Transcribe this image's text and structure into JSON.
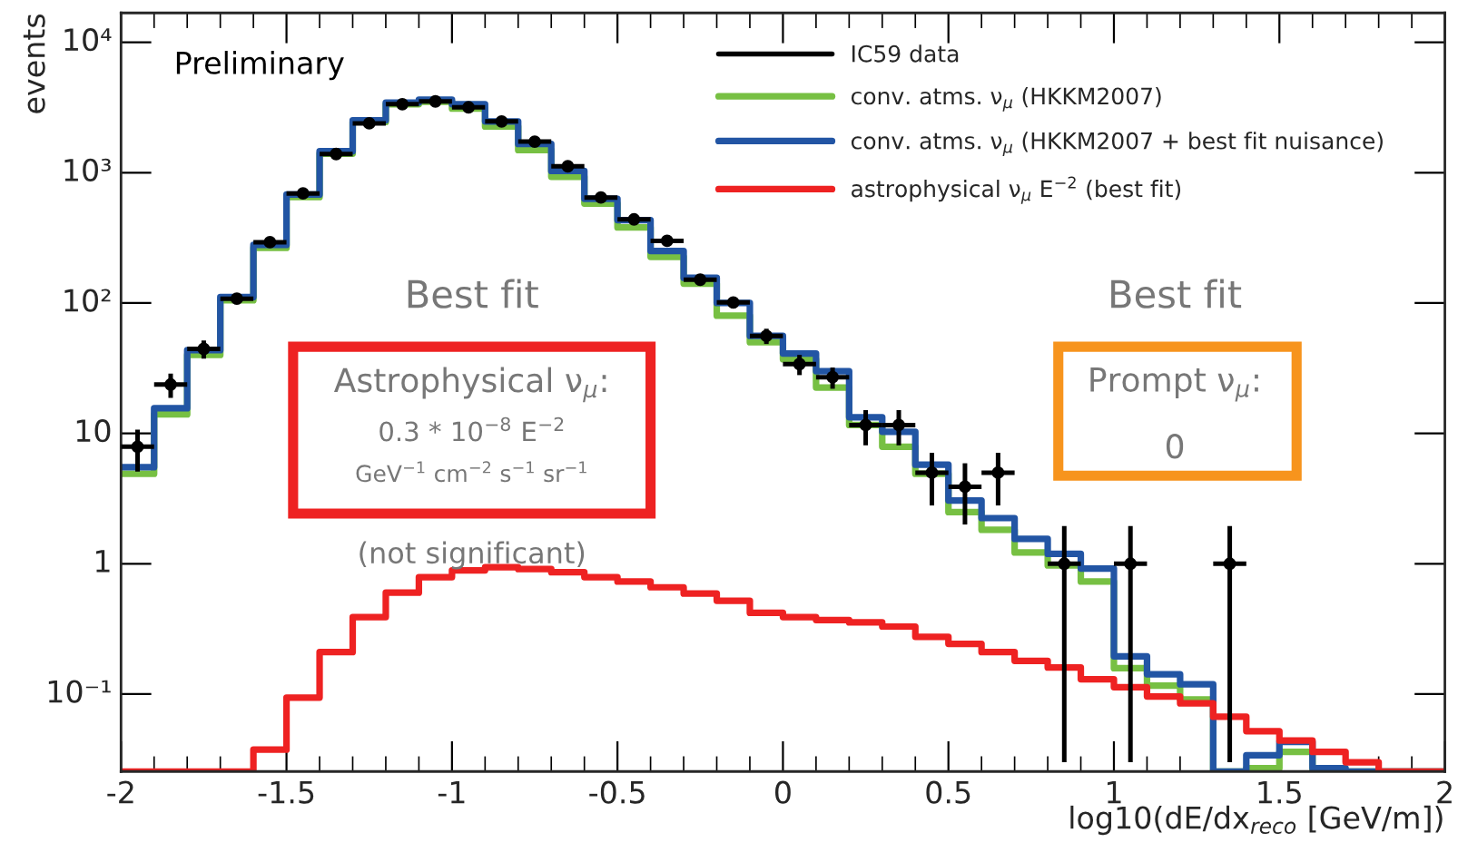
{
  "chart_data": {
    "type": "histogram",
    "bins": [
      -2,
      -1.9,
      -1.8,
      -1.7,
      -1.6,
      -1.5,
      -1.4,
      -1.3,
      -1.2,
      -1.1,
      -1,
      -0.9,
      -0.8,
      -0.7,
      -0.6,
      -0.5,
      -0.4,
      -0.3,
      -0.2,
      -0.1,
      0,
      0.1,
      0.2,
      0.3,
      0.4,
      0.5,
      0.6,
      0.7,
      0.8,
      0.9,
      1,
      1.1,
      1.2,
      1.3,
      1.4,
      1.5,
      1.6,
      1.7,
      1.8,
      1.9,
      2
    ],
    "xlabel": "log10(dE/dx$_{reco}$ [GeV/m])",
    "ylabel": "events",
    "log": "y",
    "xlim": [
      -2,
      2
    ],
    "ylim": [
      0.0255,
      16800
    ],
    "xticks": [
      -2,
      {
        "value": -1.9,
        "label": null
      },
      {
        "value": -1.8,
        "label": null
      },
      {
        "value": -1.7,
        "label": null
      },
      {
        "value": -1.6,
        "label": null
      },
      -1.5,
      {
        "value": -1.4,
        "label": null
      },
      {
        "value": -1.3,
        "label": null
      },
      {
        "value": -1.2,
        "label": null
      },
      {
        "value": -1.1,
        "label": null
      },
      -1,
      {
        "value": -0.9,
        "label": null
      },
      {
        "value": -0.8,
        "label": null
      },
      {
        "value": -0.7,
        "label": null
      },
      {
        "value": -0.6,
        "label": null
      },
      -0.5,
      {
        "value": -0.4,
        "label": null
      },
      {
        "value": -0.3,
        "label": null
      },
      {
        "value": -0.2,
        "label": null
      },
      {
        "value": -0.1,
        "label": null
      },
      0,
      {
        "value": 0.1,
        "label": null
      },
      {
        "value": 0.2,
        "label": null
      },
      {
        "value": 0.3,
        "label": null
      },
      {
        "value": 0.4,
        "label": null
      },
      0.5,
      {
        "value": 0.6,
        "label": null
      },
      {
        "value": 0.7,
        "label": null
      },
      {
        "value": 0.8,
        "label": null
      },
      {
        "value": 0.9,
        "label": null
      },
      1,
      {
        "value": 1.1,
        "label": null
      },
      {
        "value": 1.2,
        "label": null
      },
      {
        "value": 1.3,
        "label": null
      },
      {
        "value": 1.4,
        "label": null
      },
      1.5,
      {
        "value": 1.6,
        "label": null
      },
      {
        "value": 1.7,
        "label": null
      },
      {
        "value": 1.8,
        "label": null
      },
      {
        "value": 1.9,
        "label": null
      },
      2
    ],
    "yticks": [
      {
        "value": 0.1,
        "label": "10⁻¹"
      },
      1,
      10,
      {
        "value": 100,
        "label": "10²"
      },
      {
        "value": 1000,
        "label": "10³"
      },
      {
        "value": 10000,
        "label": "10⁴"
      }
    ],
    "grid": false,
    "legend": "top right",
    "series": [
      {
        "name": "IC59 data",
        "type": "scatter",
        "color": "#000000",
        "marker": "circle",
        "x": [
          -1.95,
          -1.85,
          -1.75,
          -1.65,
          -1.55,
          -1.45,
          -1.35,
          -1.25,
          -1.15,
          -1.05,
          -0.95,
          -0.85,
          -0.75,
          -0.65,
          -0.55,
          -0.45,
          -0.35,
          -0.25,
          -0.15,
          -0.05,
          0.05,
          0.15,
          0.25,
          0.35,
          0.45,
          0.55,
          0.65,
          0.85,
          1.05,
          1.35
        ],
        "values": [
          7.9,
          23.7,
          44.5,
          108,
          293,
          693,
          1390,
          2390,
          3350,
          3520,
          3170,
          2470,
          1730,
          1120,
          645,
          438,
          300,
          151,
          101,
          56,
          34,
          27,
          11.6,
          11.6,
          5.0,
          3.9,
          5.0,
          1.0,
          1.0,
          1.0
        ],
        "errors": [
          2.8,
          5,
          7,
          10,
          17,
          26,
          37,
          49,
          58,
          59,
          56,
          50,
          42,
          33,
          25,
          21,
          17,
          12,
          10,
          7.5,
          6,
          5,
          3.5,
          3.5,
          [
            2.8,
            7.1
          ],
          [
            2.0,
            5.9
          ],
          [
            2.8,
            7.1
          ],
          [
            0.03,
            1.95
          ],
          [
            0.03,
            1.95
          ],
          [
            0.03,
            1.95
          ]
        ],
        "xerrors": [
          0.05,
          0.05,
          0.05,
          0.05,
          0.05,
          0.05,
          0.05,
          0.05,
          0.05,
          0.05,
          0.05,
          0.05,
          0.05,
          0.05,
          0.05,
          0.05,
          0.05,
          0.05,
          0.05,
          0.05,
          0.05,
          0.05,
          0.05,
          0.05,
          0.05,
          0.05,
          0.05,
          0.05,
          0.05,
          0.05
        ]
      },
      {
        "name": "conv. atms. ν$_{μ}$ (HKKM2007)",
        "color": "#77c043",
        "values": [
          4.9,
          14,
          40,
          105,
          265,
          650,
          1400,
          2450,
          3350,
          3500,
          3100,
          2260,
          1490,
          930,
          580,
          380,
          226,
          141,
          80,
          50,
          37,
          22.5,
          11.6,
          7.9,
          4.9,
          2.49,
          1.82,
          1.22,
          0.97,
          0.73,
          0.158,
          0.116,
          0.091,
          null,
          0.027,
          0.036,
          null,
          null,
          null,
          null
        ]
      },
      {
        "name": "conv. atms. ν$_{μ}$ (HKKM2007 + best fit nuisance)",
        "color": "#2255a4",
        "values": [
          5.5,
          15.6,
          43.5,
          111,
          279,
          679,
          1460,
          2520,
          3450,
          3630,
          3350,
          2470,
          1660,
          1030,
          630,
          433,
          251,
          156,
          100,
          56,
          41,
          30,
          13.3,
          10.3,
          5.75,
          3.06,
          2.24,
          1.55,
          1.19,
          0.92,
          0.195,
          0.142,
          0.119,
          null,
          0.034,
          0.043,
          0.027,
          null,
          null,
          null
        ]
      },
      {
        "name": "astrophysical ν$_{μ}$ E$^{−2}$ (best fit)",
        "color": "#ee2222",
        "values": [
          null,
          null,
          null,
          null,
          0.0375,
          0.094,
          0.21,
          0.39,
          0.6,
          0.79,
          0.89,
          0.94,
          0.91,
          0.86,
          0.79,
          0.73,
          0.66,
          0.59,
          0.52,
          0.42,
          0.39,
          0.37,
          0.355,
          0.33,
          0.275,
          0.243,
          0.21,
          0.18,
          0.16,
          0.13,
          0.113,
          0.096,
          0.085,
          0.067,
          0.052,
          0.044,
          0.036,
          0.03,
          null,
          null
        ]
      }
    ],
    "annotations": [
      "Preliminary",
      "Best fit",
      "Astrophysical ν$_{μ}$:",
      "0.3 * 10$^{−8}$ E$^{−2}$",
      "GeV$^{−1}$ cm$^{−2}$ s$^{−1}$ sr$^{−1}$",
      "(not significant)",
      "Best fit",
      "Prompt ν$_{μ}$:",
      "0"
    ]
  }
}
